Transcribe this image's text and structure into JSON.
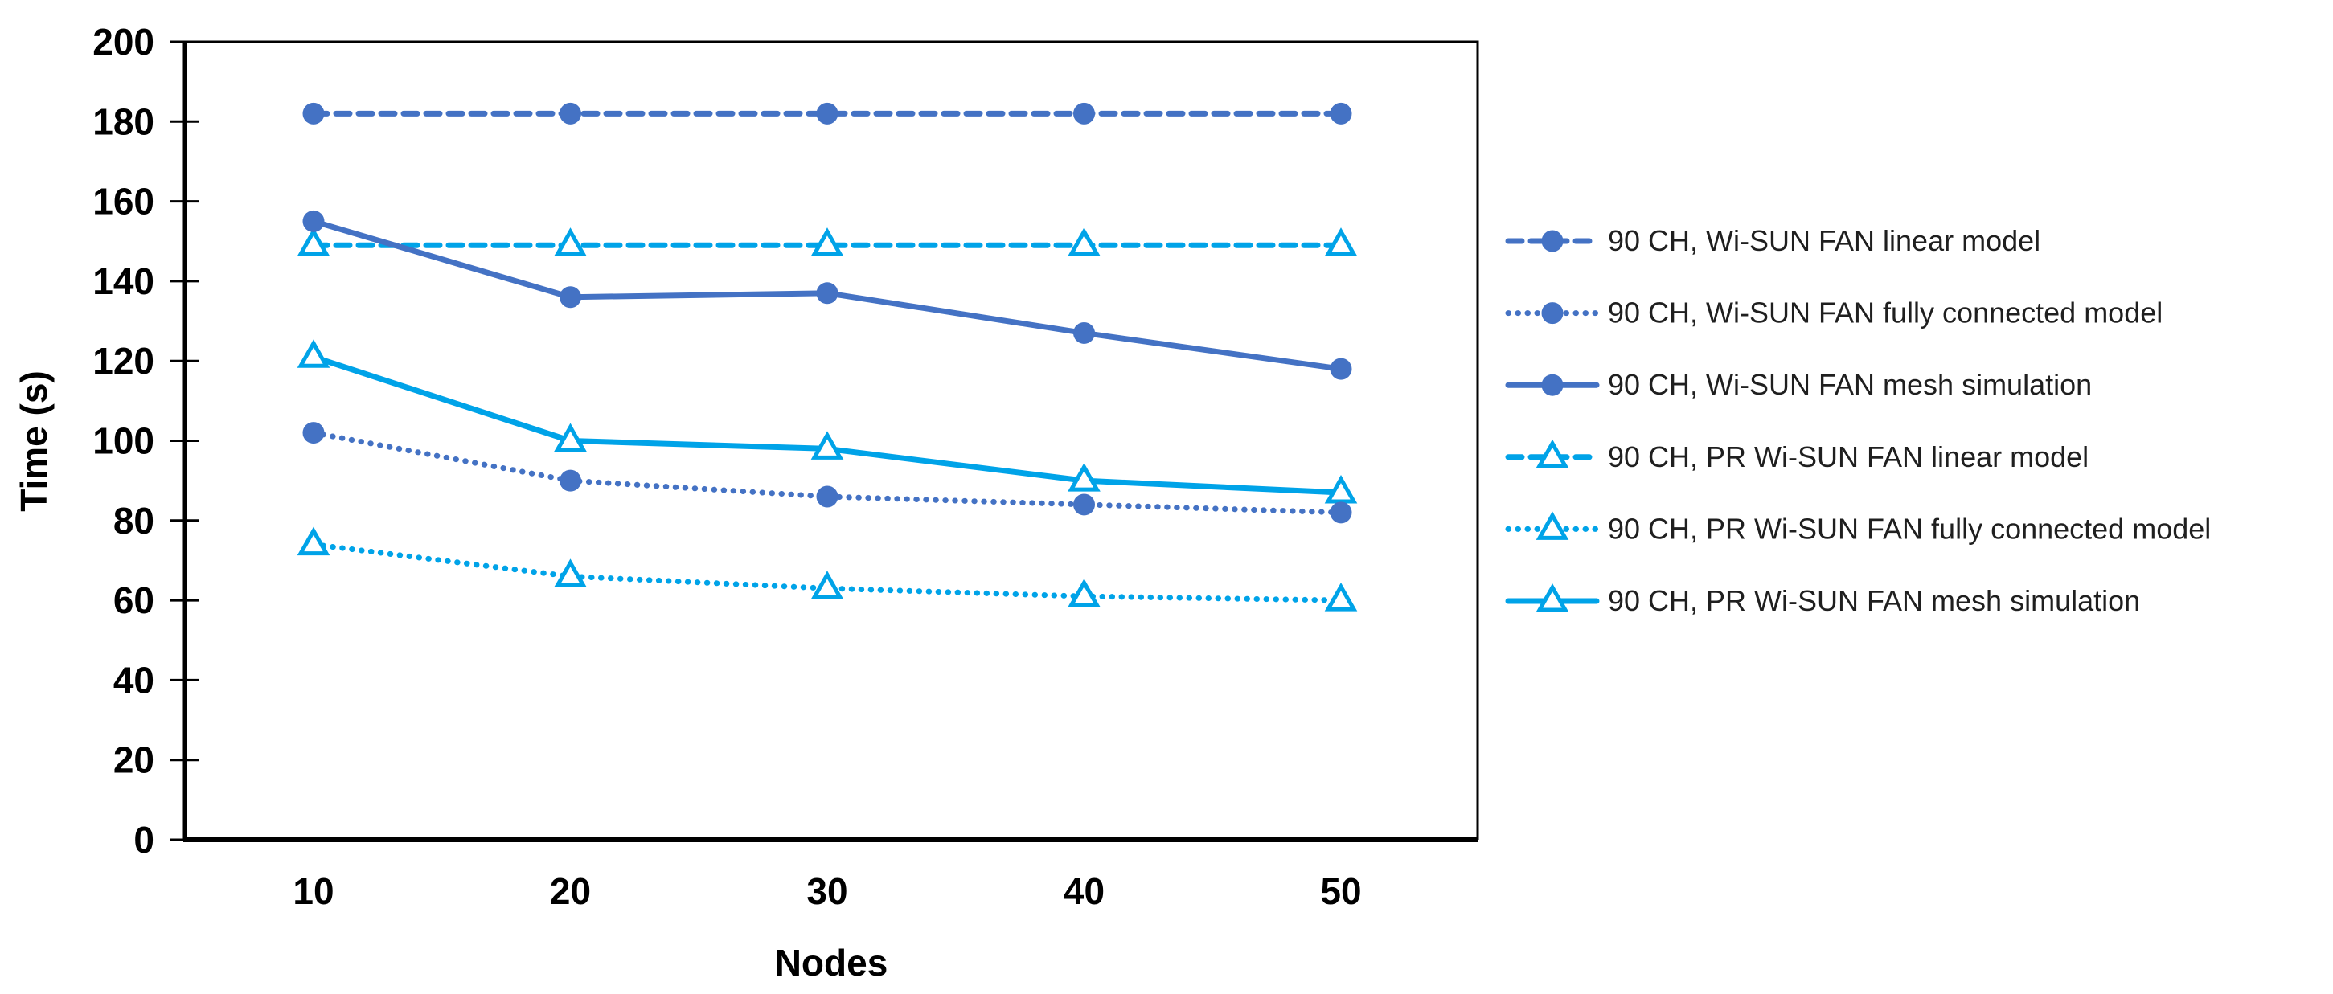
{
  "chart_data": {
    "type": "line",
    "title": "",
    "xlabel": "Nodes",
    "ylabel": "Time (s)",
    "x": [
      10,
      20,
      30,
      40,
      50
    ],
    "ylim": [
      0,
      200
    ],
    "yticks": [
      0,
      20,
      40,
      60,
      80,
      100,
      120,
      140,
      160,
      180,
      200
    ],
    "grid": false,
    "legend_position": "right",
    "colors": {
      "dark_blue": "#4472C4",
      "light_blue": "#00A3E8",
      "axis": "#000000",
      "legend_text": "#1f1f1f"
    },
    "series": [
      {
        "name": "90 CH, Wi-SUN FAN linear model",
        "color": "#4472C4",
        "line_style": "dashed",
        "marker": "circle",
        "values": [
          182,
          182,
          182,
          182,
          182
        ]
      },
      {
        "name": "90 CH, Wi-SUN FAN fully connected model",
        "color": "#4472C4",
        "line_style": "dotted",
        "marker": "circle",
        "values": [
          102,
          90,
          86,
          84,
          82
        ]
      },
      {
        "name": "90 CH, Wi-SUN FAN mesh simulation",
        "color": "#4472C4",
        "line_style": "solid",
        "marker": "circle",
        "values": [
          155,
          136,
          137,
          127,
          118
        ]
      },
      {
        "name": "90 CH, PR Wi-SUN FAN linear model",
        "color": "#00A3E8",
        "line_style": "dashed",
        "marker": "triangle",
        "values": [
          149,
          149,
          149,
          149,
          149
        ]
      },
      {
        "name": "90 CH, PR Wi-SUN FAN fully connected model",
        "color": "#00A3E8",
        "line_style": "dotted",
        "marker": "triangle",
        "values": [
          74,
          66,
          63,
          61,
          60
        ]
      },
      {
        "name": "90 CH, PR Wi-SUN FAN mesh simulation",
        "color": "#00A3E8",
        "line_style": "solid",
        "marker": "triangle",
        "values": [
          121,
          100,
          98,
          90,
          87
        ]
      }
    ]
  }
}
